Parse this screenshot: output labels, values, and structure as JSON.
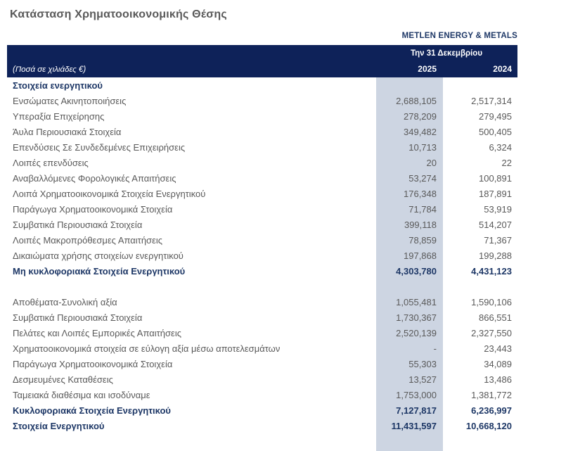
{
  "page": {
    "title": "Κατάσταση Χρηματοοικονομικής Θέσης",
    "brand": "METLEN ENERGY & METALS"
  },
  "table": {
    "header": {
      "unit_note": "(Ποσά σε χιλιάδες €)",
      "date_label": "Την 31 Δεκεμβρίου",
      "year_2025": "2025",
      "year_2024": "2024"
    },
    "rows": [
      {
        "type": "section",
        "label": "Στοιχεία ενεργητικού",
        "v2025": "",
        "v2024": ""
      },
      {
        "type": "item",
        "label": "Ενσώματες Ακινητοποιήσεις",
        "v2025": "2,688,105",
        "v2024": "2,517,314"
      },
      {
        "type": "item",
        "label": "Υπεραξία Επιχείρησης",
        "v2025": "278,209",
        "v2024": "279,495"
      },
      {
        "type": "item",
        "label": "Άυλα Περιουσιακά Στοιχεία",
        "v2025": "349,482",
        "v2024": "500,405"
      },
      {
        "type": "item",
        "label": "Επενδύσεις Σε Συνδεδεμένες Επιχειρήσεις",
        "v2025": "10,713",
        "v2024": "6,324"
      },
      {
        "type": "item",
        "label": "Λοιπές επενδύσεις",
        "v2025": "20",
        "v2024": "22"
      },
      {
        "type": "item",
        "label": "Αναβαλλόμενες Φορολογικές Απαιτήσεις",
        "v2025": "53,274",
        "v2024": "100,891"
      },
      {
        "type": "item",
        "label": "Λοιπά Χρηματοοικονομικά Στοιχεία Ενεργητικού",
        "v2025": "176,348",
        "v2024": "187,891"
      },
      {
        "type": "item",
        "label": "Παράγωγα Χρηματοοικονομικά Στοιχεία",
        "v2025": "71,784",
        "v2024": "53,919"
      },
      {
        "type": "item",
        "label": "Συμβατικά Περιουσιακά Στοιχεία",
        "v2025": "399,118",
        "v2024": "514,207"
      },
      {
        "type": "item",
        "label": "Λοιπές Μακροπρόθεσμες Απαιτήσεις",
        "v2025": "78,859",
        "v2024": "71,367"
      },
      {
        "type": "item",
        "label": "Δικαιώματα χρήσης στοιχείων ενεργητικού",
        "v2025": "197,868",
        "v2024": "199,288"
      },
      {
        "type": "total",
        "label": "Μη κυκλοφοριακά Στοιχεία Ενεργητικού",
        "v2025": "4,303,780",
        "v2024": "4,431,123"
      },
      {
        "type": "blank",
        "label": "",
        "v2025": "",
        "v2024": ""
      },
      {
        "type": "item",
        "label": "Αποθέματα-Συνολική αξία",
        "v2025": "1,055,481",
        "v2024": "1,590,106"
      },
      {
        "type": "item",
        "label": "Συμβατικά Περιουσιακά Στοιχεία",
        "v2025": "1,730,367",
        "v2024": "866,551"
      },
      {
        "type": "item",
        "label": "Πελάτες και Λοιπές Εμπορικές Απαιτήσεις",
        "v2025": "2,520,139",
        "v2024": "2,327,550"
      },
      {
        "type": "item",
        "label": "Χρηματοοικονομικά στοιχεία σε εύλογη αξία μέσω αποτελεσμάτων",
        "v2025": "-",
        "v2024": "23,443"
      },
      {
        "type": "item",
        "label": "Παράγωγα Χρηματοοικονομικά Στοιχεία",
        "v2025": "55,303",
        "v2024": "34,089"
      },
      {
        "type": "item",
        "label": "Δεσμευμένες Καταθέσεις",
        "v2025": "13,527",
        "v2024": "13,486"
      },
      {
        "type": "item",
        "label": "Ταμειακά διαθέσιμα και ισοδύναμε",
        "v2025": "1,753,000",
        "v2024": "1,381,772"
      },
      {
        "type": "total",
        "label": "Κυκλοφοριακά Στοιχεία Ενεργητικού",
        "v2025": "7,127,817",
        "v2024": "6,236,997"
      },
      {
        "type": "total",
        "label": "Στοιχεία Ενεργητικού",
        "v2025": "11,431,597",
        "v2024": "10,668,120"
      }
    ]
  },
  "colors": {
    "header_bar": "#0e2259",
    "navy_text": "#1d3766",
    "body_text": "#595959",
    "highlight_2025": "#cdd5e2",
    "background": "#ffffff"
  }
}
